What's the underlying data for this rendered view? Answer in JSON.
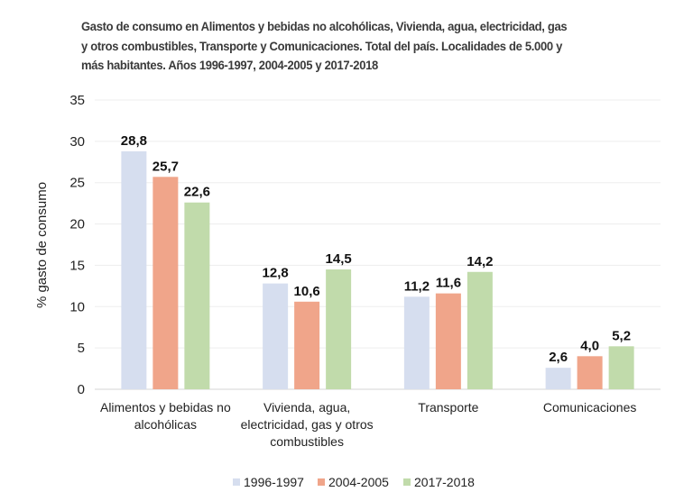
{
  "chart_data": {
    "type": "bar",
    "title": "Gasto de consumo en Alimentos y bebidas no alcohólicas, Vivienda, agua, electricidad, gas y otros combustibles, Transporte y Comunicaciones. Total del país. Localidades de 5.000 y más habitantes. Años 1996-1997, 2004-2005 y 2017-2018",
    "title_lines": [
      "Gasto de consumo en Alimentos y bebidas no alcohólicas, Vivienda, agua, electricidad, gas",
      "y otros combustibles, Transporte y Comunicaciones. Total del país. Localidades de 5.000 y",
      "más habitantes. Años 1996-1997, 2004-2005 y 2017-2018"
    ],
    "xlabel": "",
    "ylabel": "% gasto de consumo",
    "ylim": [
      0,
      35
    ],
    "yticks": [
      0,
      5,
      10,
      15,
      20,
      25,
      30,
      35
    ],
    "grid": true,
    "legend_position": "bottom-center",
    "categories": [
      [
        "Alimentos y bebidas no",
        "alcohólicas"
      ],
      [
        "Vivienda, agua,",
        "electricidad, gas y otros",
        "combustibles"
      ],
      [
        "Transporte"
      ],
      [
        "Comunicaciones"
      ]
    ],
    "series": [
      {
        "name": "1996-1997",
        "color": "#D6DEEF",
        "values": [
          28.8,
          12.8,
          11.2,
          2.6
        ],
        "labels": [
          "28,8",
          "12,8",
          "11,2",
          "2,6"
        ]
      },
      {
        "name": "2004-2005",
        "color": "#F0A58A",
        "values": [
          25.7,
          10.6,
          11.6,
          4.0
        ],
        "labels": [
          "25,7",
          "10,6",
          "11,6",
          "4,0"
        ]
      },
      {
        "name": "2017-2018",
        "color": "#C1DBAB",
        "values": [
          22.6,
          14.5,
          14.2,
          5.2
        ],
        "labels": [
          "22,6",
          "14,5",
          "14,2",
          "5,2"
        ]
      }
    ],
    "gridline_color": "#EDEDED"
  }
}
